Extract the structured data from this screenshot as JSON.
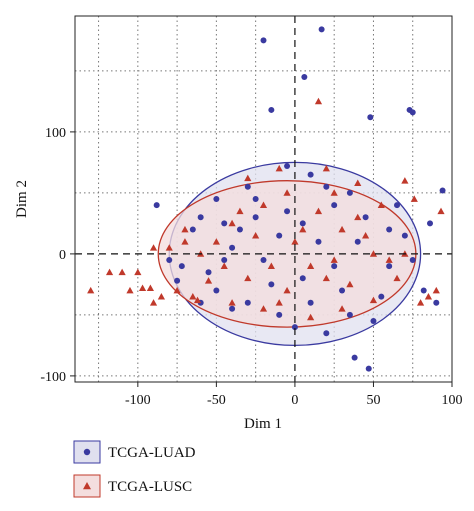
{
  "chart_data": {
    "type": "scatter",
    "title": "",
    "xlabel": "Dim 1",
    "ylabel": "Dim 2",
    "xlim": [
      -140,
      100
    ],
    "ylim": [
      -105,
      195
    ],
    "xticks": [
      -100,
      -50,
      0,
      50,
      100
    ],
    "yticks": [
      -100,
      0,
      100
    ],
    "grid": "dotted",
    "reference_lines": {
      "x": 0,
      "y": 0,
      "style": "dashed"
    },
    "legend_placement": "bottom-left, below plot",
    "series": [
      {
        "name": "TCGA-LUAD",
        "marker": "circle",
        "color": "#3a3aa0",
        "ellipse": {
          "center": [
            0,
            0
          ],
          "rx": 80,
          "ry": 75,
          "fill": "#e0e0ef",
          "stroke": "#3a3aa0"
        },
        "points": [
          [
            -20,
            175
          ],
          [
            17,
            184
          ],
          [
            6,
            145
          ],
          [
            -15,
            118
          ],
          [
            75,
            116
          ],
          [
            73,
            118
          ],
          [
            48,
            112
          ],
          [
            94,
            52
          ],
          [
            -88,
            40
          ],
          [
            -60,
            30
          ],
          [
            -40,
            5
          ],
          [
            -72,
            -10
          ],
          [
            -75,
            -22
          ],
          [
            -50,
            -30
          ],
          [
            -30,
            -40
          ],
          [
            -10,
            -50
          ],
          [
            20,
            -65
          ],
          [
            35,
            -50
          ],
          [
            47,
            -94
          ],
          [
            38,
            -85
          ],
          [
            90,
            -40
          ],
          [
            82,
            -30
          ],
          [
            86,
            25
          ],
          [
            -5,
            72
          ],
          [
            10,
            65
          ],
          [
            -25,
            45
          ],
          [
            25,
            40
          ],
          [
            -45,
            -5
          ],
          [
            5,
            -20
          ],
          [
            60,
            -10
          ],
          [
            -65,
            20
          ],
          [
            70,
            15
          ],
          [
            -15,
            -25
          ],
          [
            15,
            10
          ],
          [
            -35,
            20
          ],
          [
            45,
            30
          ],
          [
            -55,
            -15
          ],
          [
            55,
            -35
          ],
          [
            -5,
            35
          ],
          [
            30,
            -30
          ],
          [
            -80,
            -5
          ],
          [
            -20,
            -5
          ],
          [
            10,
            -40
          ],
          [
            40,
            10
          ],
          [
            -30,
            55
          ],
          [
            20,
            55
          ],
          [
            50,
            -55
          ],
          [
            -50,
            45
          ],
          [
            65,
            40
          ],
          [
            0,
            -60
          ],
          [
            -10,
            15
          ],
          [
            25,
            -10
          ],
          [
            -40,
            -45
          ],
          [
            -60,
            -40
          ],
          [
            75,
            -5
          ],
          [
            -25,
            30
          ],
          [
            35,
            50
          ],
          [
            -45,
            25
          ],
          [
            5,
            25
          ],
          [
            60,
            20
          ]
        ]
      },
      {
        "name": "TCGA-LUSC",
        "marker": "triangle",
        "color": "#c0392b",
        "ellipse": {
          "center": [
            -5,
            0
          ],
          "rx": 82,
          "ry": 60,
          "fill": "#f4dede",
          "stroke": "#c0392b"
        },
        "points": [
          [
            15,
            125
          ],
          [
            -85,
            -35
          ],
          [
            -97,
            -28
          ],
          [
            -100,
            -15
          ],
          [
            -130,
            -30
          ],
          [
            -110,
            -15
          ],
          [
            -90,
            -40
          ],
          [
            -75,
            -30
          ],
          [
            -65,
            -35
          ],
          [
            -105,
            -30
          ],
          [
            -92,
            -28
          ],
          [
            -118,
            -15
          ],
          [
            -80,
            5
          ],
          [
            -70,
            10
          ],
          [
            -90,
            5
          ],
          [
            -62,
            -38
          ],
          [
            85,
            -35
          ],
          [
            80,
            -40
          ],
          [
            90,
            -30
          ],
          [
            93,
            35
          ],
          [
            76,
            45
          ],
          [
            70,
            60
          ],
          [
            -10,
            70
          ],
          [
            20,
            70
          ],
          [
            -30,
            62
          ],
          [
            40,
            58
          ],
          [
            10,
            -52
          ],
          [
            -20,
            -45
          ],
          [
            30,
            -45
          ],
          [
            50,
            -38
          ],
          [
            -40,
            -40
          ],
          [
            -55,
            -22
          ],
          [
            65,
            -20
          ],
          [
            -25,
            15
          ],
          [
            25,
            -5
          ],
          [
            -15,
            -10
          ],
          [
            5,
            20
          ],
          [
            45,
            15
          ],
          [
            -50,
            10
          ],
          [
            55,
            40
          ],
          [
            -35,
            35
          ],
          [
            15,
            35
          ],
          [
            -5,
            -30
          ],
          [
            35,
            -25
          ],
          [
            -60,
            0
          ],
          [
            70,
            0
          ],
          [
            -45,
            -10
          ],
          [
            60,
            -5
          ],
          [
            0,
            10
          ],
          [
            -20,
            40
          ],
          [
            20,
            -20
          ],
          [
            40,
            30
          ],
          [
            -30,
            -20
          ],
          [
            10,
            -10
          ],
          [
            -70,
            20
          ],
          [
            -5,
            50
          ],
          [
            30,
            20
          ],
          [
            50,
            0
          ],
          [
            -40,
            25
          ],
          [
            -10,
            -40
          ],
          [
            25,
            50
          ]
        ]
      }
    ]
  }
}
